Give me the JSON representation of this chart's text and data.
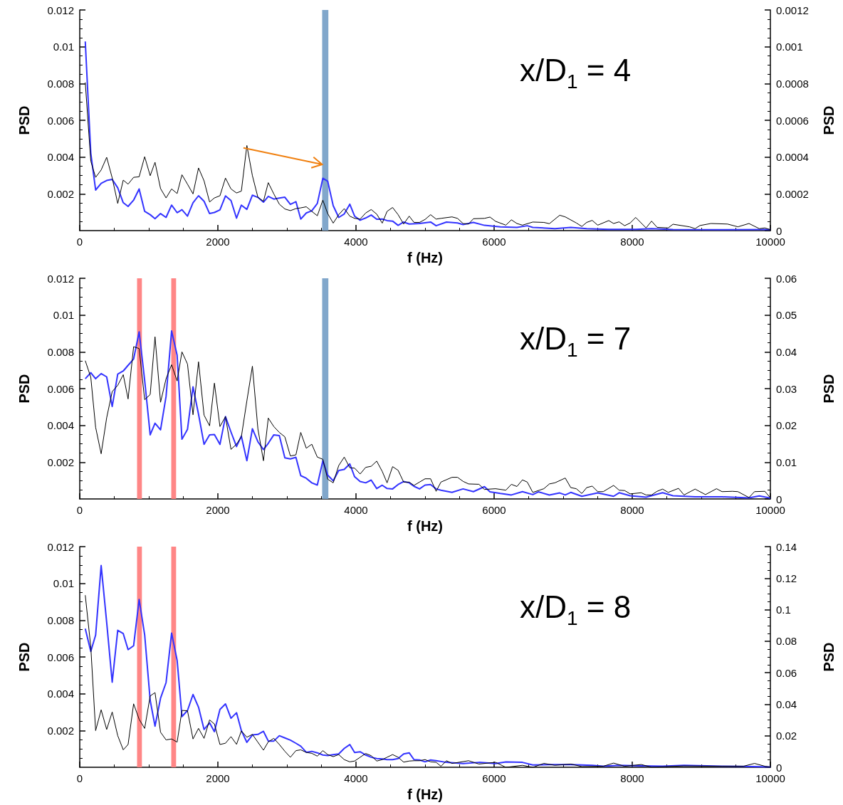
{
  "chart_data": [
    {
      "type": "line",
      "xlabel": "f (Hz)",
      "ylabel": "PSD",
      "y2label": "PSD",
      "annotations": [
        "x/D$_{1}$ = 4"
      ],
      "xlim": [
        0,
        10000
      ],
      "xticks": [
        0,
        2000,
        4000,
        6000,
        8000,
        10000
      ],
      "ylim": [
        0,
        0.012
      ],
      "yticks": [
        0.002,
        0.004,
        0.006,
        0.008,
        0.01,
        0.012
      ],
      "y2lim": [
        0,
        0.0012
      ],
      "y2ticks": [
        0,
        0.0002,
        0.0004,
        0.0006,
        0.0008,
        0.001,
        0.0012
      ],
      "bands": [
        {
          "axis": "x",
          "from": 3510,
          "to": 3600,
          "color": "#7aa2c8"
        }
      ],
      "series": [
        {
          "color": "#3333ff",
          "x": [
            80,
            160,
            230,
            310,
            390,
            470,
            550,
            630,
            700,
            780,
            860,
            940,
            1020,
            1090,
            1170,
            1250,
            1330,
            1410,
            1480,
            1560,
            1640,
            1720,
            1800,
            1880,
            1950,
            2030,
            2110,
            2190,
            2270,
            2340,
            2420,
            2500,
            2580,
            2660,
            2730,
            2810,
            2890,
            2970,
            3050,
            3130,
            3200,
            3280,
            3360,
            3440,
            3520,
            3590,
            3670,
            3750,
            3830,
            3910,
            3980,
            4060,
            4140,
            4220,
            4300,
            4380,
            4450,
            4530,
            4610,
            4690,
            4770,
            4920,
            5080,
            5160,
            5310,
            5470,
            5550,
            5700,
            5860,
            6090,
            6330,
            6480,
            6560,
            6880,
            7110,
            7340,
            7660,
            8050,
            8280,
            8590,
            9300,
            10000
          ],
          "values": [
            0.01029,
            0.00421,
            0.00221,
            0.00257,
            0.00273,
            0.00279,
            0.00233,
            0.00152,
            0.00132,
            0.00166,
            0.00227,
            0.00105,
            0.00087,
            0.00065,
            0.00093,
            0.00072,
            0.00139,
            0.00098,
            0.00114,
            0.00079,
            0.00152,
            0.0019,
            0.0016,
            0.00093,
            0.00099,
            0.00113,
            0.00189,
            0.00164,
            0.00068,
            0.00139,
            0.00116,
            0.00193,
            0.00181,
            0.00155,
            0.00187,
            0.00172,
            0.00177,
            0.00182,
            0.00143,
            0.00158,
            0.00063,
            0.00096,
            0.00108,
            0.00148,
            0.00285,
            0.00269,
            0.00136,
            0.00072,
            0.00091,
            0.00144,
            0.00079,
            0.00057,
            0.00069,
            0.00085,
            0.00062,
            0.00063,
            0.00055,
            0.00052,
            0.00029,
            0.00047,
            0.00036,
            0.00039,
            0.00047,
            0.00027,
            0.00047,
            0.00042,
            0.00033,
            0.00045,
            0.00029,
            0.00021,
            0.00018,
            0.00027,
            0.00018,
            0.00011,
            0.00018,
            0.00011,
            7e-05,
            7e-05,
            0.00011,
            6e-05,
            5e-05,
            6e-05
          ]
        },
        {
          "color": "#000000",
          "axis": "y2",
          "x": [
            80,
            160,
            230,
            310,
            390,
            470,
            550,
            630,
            700,
            780,
            860,
            940,
            1020,
            1090,
            1170,
            1250,
            1330,
            1410,
            1480,
            1560,
            1640,
            1720,
            1800,
            1880,
            1950,
            2030,
            2110,
            2190,
            2270,
            2340,
            2420,
            2500,
            2580,
            2660,
            2730,
            2810,
            2890,
            2970,
            3050,
            3130,
            3200,
            3280,
            3360,
            3440,
            3520,
            3590,
            3670,
            3750,
            3830,
            3910,
            3980,
            4060,
            4140,
            4220,
            4300,
            4380,
            4450,
            4530,
            4610,
            4690,
            4770,
            4840,
            4920,
            5000,
            5080,
            5160,
            5230,
            5390,
            5470,
            5550,
            5630,
            5700,
            5860,
            5940,
            6020,
            6170,
            6250,
            6330,
            6410,
            6560,
            6720,
            6800,
            6950,
            7030,
            7190,
            7270,
            7340,
            7420,
            7500,
            7660,
            7730,
            7810,
            7890,
            7970,
            8050,
            8200,
            8280,
            8360,
            8520,
            8590,
            8830,
            8910,
            8980,
            9140,
            9380,
            9530,
            9690,
            9840,
            9920,
            10000
          ],
          "values": [
            0.000806,
            0.000378,
            0.00029,
            0.00033,
            0.000399,
            0.000287,
            0.000148,
            0.000275,
            0.000253,
            0.00029,
            0.000293,
            0.000402,
            0.000299,
            0.000372,
            0.000229,
            0.000178,
            0.000227,
            0.000202,
            0.000304,
            0.000253,
            0.0002,
            0.000341,
            0.000271,
            0.000156,
            0.000178,
            0.00019,
            0.000286,
            0.000227,
            0.000205,
            0.000215,
            0.000463,
            0.000299,
            0.000181,
            0.00016,
            0.000261,
            0.0002,
            0.000144,
            0.000118,
            0.000109,
            0.00012,
            0.000124,
            0.00013,
            0.000105,
            8.1e-05,
            0.000166,
            9.3e-05,
            4.1e-05,
            8.7e-05,
            0.00012,
            7.9e-05,
            6.7e-05,
            6.3e-05,
            9.6e-05,
            0.000115,
            9e-05,
            4.1e-05,
            0.000105,
            0.000126,
            8.7e-05,
            3.6e-05,
            7.9e-05,
            4.5e-05,
            4.5e-05,
            6.1e-05,
            8.7e-05,
            6.3e-05,
            6.7e-05,
            7.5e-05,
            6.7e-05,
            3.9e-05,
            3.6e-05,
            6.5e-05,
            6.7e-05,
            7.4e-05,
            5.1e-05,
            3e-05,
            5.9e-05,
            3.9e-05,
            3e-05,
            4.7e-05,
            4.5e-05,
            3.8e-05,
            8.4e-05,
            7.5e-05,
            4.2e-05,
            2.3e-05,
            4.5e-05,
            5.6e-05,
            3e-05,
            5.5e-05,
            3.9e-05,
            4.8e-05,
            2.7e-05,
            4.2e-05,
            7.2e-05,
            1.5e-05,
            5.2e-05,
            1.8e-05,
            1.5e-05,
            3.5e-05,
            2.1e-05,
            1.1e-05,
            2.8e-05,
            3.9e-05,
            3.6e-05,
            2.1e-05,
            3.9e-05,
            1.1e-05,
            1.5e-05,
            5e-06
          ]
        }
      ]
    },
    {
      "type": "line",
      "xlabel": "f (Hz)",
      "ylabel": "PSD",
      "y2label": "PSD",
      "annotations": [
        "x/D$_{1}$ = 7"
      ],
      "xlim": [
        0,
        10000
      ],
      "xticks": [
        0,
        2000,
        4000,
        6000,
        8000,
        10000
      ],
      "ylim": [
        0,
        0.012
      ],
      "yticks": [
        0.002,
        0.004,
        0.006,
        0.008,
        0.01,
        0.012
      ],
      "y2lim": [
        0,
        0.06
      ],
      "y2ticks": [
        0,
        0.01,
        0.02,
        0.03,
        0.04,
        0.05,
        0.06
      ],
      "bands": [
        {
          "axis": "x",
          "from": 830,
          "to": 900,
          "color": "#ff7f7f"
        },
        {
          "axis": "x",
          "from": 1325,
          "to": 1395,
          "color": "#ff7f7f"
        },
        {
          "axis": "x",
          "from": 3510,
          "to": 3600,
          "color": "#7aa2c8"
        }
      ],
      "series": [
        {
          "color": "#3333ff",
          "x": [
            80,
            160,
            230,
            310,
            390,
            470,
            550,
            630,
            700,
            780,
            860,
            940,
            1020,
            1090,
            1170,
            1250,
            1330,
            1410,
            1480,
            1560,
            1640,
            1720,
            1800,
            1880,
            1950,
            2030,
            2110,
            2190,
            2270,
            2340,
            2420,
            2500,
            2580,
            2660,
            2730,
            2810,
            2890,
            2970,
            3050,
            3130,
            3200,
            3280,
            3360,
            3440,
            3520,
            3590,
            3670,
            3750,
            3830,
            3910,
            3980,
            4060,
            4140,
            4220,
            4300,
            4380,
            4450,
            4530,
            4610,
            4690,
            4770,
            4840,
            4920,
            5000,
            5080,
            5160,
            5230,
            5390,
            5550,
            5700,
            5860,
            5940,
            6090,
            6250,
            6410,
            6560,
            6640,
            6800,
            6950,
            7030,
            7110,
            7270,
            7500,
            7730,
            7810,
            7970,
            8200,
            8440,
            8590,
            8910,
            9300,
            9690,
            9840,
            10000
          ],
          "values": [
            0.00654,
            0.00687,
            0.00654,
            0.00682,
            0.00664,
            0.00503,
            0.00679,
            0.00696,
            0.00727,
            0.00761,
            0.00909,
            0.00645,
            0.00349,
            0.00412,
            0.00376,
            0.00558,
            0.00914,
            0.00782,
            0.00325,
            0.00379,
            0.0061,
            0.00461,
            0.00297,
            0.00349,
            0.00351,
            0.00297,
            0.00448,
            0.00364,
            0.00285,
            0.00342,
            0.00208,
            0.00382,
            0.00311,
            0.00269,
            0.00303,
            0.00349,
            0.00345,
            0.00224,
            0.00218,
            0.00227,
            0.00127,
            0.00113,
            0.00088,
            0.00076,
            0.00208,
            0.0013,
            0.00099,
            0.00155,
            0.00161,
            0.00191,
            0.00121,
            0.00095,
            0.00088,
            0.00103,
            0.00057,
            0.00075,
            0.00057,
            0.00055,
            0.00079,
            0.00095,
            0.00088,
            0.00069,
            0.00055,
            0.00076,
            0.00079,
            0.00055,
            0.00048,
            0.00036,
            0.00055,
            0.0004,
            0.00067,
            0.00039,
            0.0003,
            0.00022,
            0.0004,
            0.00024,
            0.00039,
            0.00022,
            0.00033,
            0.00022,
            0.00036,
            0.00015,
            0.00033,
            0.00015,
            0.00034,
            0.00018,
            0.0001,
            0.00034,
            0.00018,
            0.00012,
            0.00012,
            6e-05,
            0.00017,
            5e-05
          ]
        },
        {
          "color": "#000000",
          "axis": "y2",
          "x": [
            80,
            160,
            230,
            310,
            390,
            470,
            550,
            630,
            700,
            780,
            860,
            940,
            1020,
            1090,
            1170,
            1250,
            1330,
            1410,
            1480,
            1560,
            1640,
            1720,
            1800,
            1880,
            1950,
            2030,
            2110,
            2190,
            2270,
            2340,
            2420,
            2500,
            2580,
            2660,
            2730,
            2810,
            2890,
            2970,
            3050,
            3130,
            3200,
            3280,
            3360,
            3440,
            3520,
            3590,
            3670,
            3750,
            3830,
            3910,
            3980,
            4060,
            4140,
            4220,
            4300,
            4380,
            4450,
            4530,
            4610,
            4690,
            4770,
            4840,
            4920,
            5000,
            5080,
            5160,
            5230,
            5390,
            5470,
            5550,
            5630,
            5780,
            5860,
            6020,
            6170,
            6250,
            6330,
            6410,
            6480,
            6560,
            6720,
            6800,
            6880,
            7030,
            7110,
            7190,
            7270,
            7340,
            7420,
            7500,
            7580,
            7730,
            7810,
            7890,
            7970,
            8130,
            8200,
            8280,
            8360,
            8440,
            8520,
            8670,
            8750,
            8910,
            9060,
            9220,
            9300,
            9450,
            9530,
            9690,
            9770,
            9920,
            10000
          ],
          "values": [
            0.0376,
            0.0331,
            0.0195,
            0.0123,
            0.0221,
            0.0292,
            0.0309,
            0.0338,
            0.0272,
            0.0414,
            0.0409,
            0.027,
            0.0284,
            0.0441,
            0.0263,
            0.0327,
            0.0365,
            0.0321,
            0.04,
            0.0367,
            0.0229,
            0.0373,
            0.0228,
            0.0199,
            0.0315,
            0.0197,
            0.0224,
            0.0135,
            0.0149,
            0.0169,
            0.0267,
            0.0361,
            0.019,
            0.0104,
            0.022,
            0.0197,
            0.0181,
            0.0169,
            0.0117,
            0.012,
            0.0181,
            0.0138,
            0.0149,
            0.0114,
            0.0108,
            0.0054,
            0.0044,
            0.0091,
            0.0114,
            0.0085,
            0.0084,
            0.0068,
            0.0086,
            0.0089,
            0.0103,
            0.0075,
            0.0044,
            0.0088,
            0.0078,
            0.0046,
            0.0046,
            0.0037,
            0.0046,
            0.0055,
            0.0055,
            0.0021,
            0.0046,
            0.0059,
            0.0059,
            0.0048,
            0.0041,
            0.004,
            0.0026,
            0.0028,
            0.0024,
            0.004,
            0.0034,
            0.0052,
            0.0046,
            0.0018,
            0.0028,
            0.0041,
            0.0044,
            0.0057,
            0.0031,
            0.0028,
            0.0015,
            0.0031,
            0.0035,
            0.002,
            0.002,
            0.0037,
            0.0024,
            0.0023,
            0.0014,
            0.0017,
            0.0011,
            0.0011,
            0.0021,
            0.0027,
            0.0018,
            0.0029,
            0.0011,
            0.0027,
            0.0012,
            0.0028,
            0.002,
            0.0021,
            0.002,
            0.0004,
            0.002,
            0.0021,
            0.0003
          ]
        }
      ]
    },
    {
      "type": "line",
      "xlabel": "f (Hz)",
      "ylabel": "PSD",
      "y2label": "PSD",
      "annotations": [
        "x/D$_{1}$ = 8"
      ],
      "xlim": [
        0,
        10000
      ],
      "xticks": [
        0,
        2000,
        4000,
        6000,
        8000,
        10000
      ],
      "ylim": [
        0,
        0.012
      ],
      "yticks": [
        0.002,
        0.004,
        0.006,
        0.008,
        0.01,
        0.012
      ],
      "y2lim": [
        0,
        0.14
      ],
      "y2ticks": [
        0,
        0.02,
        0.04,
        0.06,
        0.08,
        0.1,
        0.12,
        0.14
      ],
      "bands": [
        {
          "axis": "x",
          "from": 830,
          "to": 900,
          "color": "#ff7f7f"
        },
        {
          "axis": "x",
          "from": 1325,
          "to": 1395,
          "color": "#ff7f7f"
        }
      ],
      "series": [
        {
          "color": "#3333ff",
          "x": [
            80,
            160,
            230,
            310,
            390,
            470,
            550,
            630,
            700,
            780,
            860,
            940,
            1020,
            1090,
            1170,
            1250,
            1330,
            1410,
            1480,
            1560,
            1640,
            1720,
            1800,
            1880,
            1950,
            2030,
            2110,
            2190,
            2270,
            2340,
            2420,
            2500,
            2580,
            2660,
            2730,
            2810,
            2890,
            2970,
            3050,
            3130,
            3200,
            3280,
            3360,
            3440,
            3520,
            3590,
            3670,
            3750,
            3830,
            3910,
            3980,
            4060,
            4140,
            4220,
            4300,
            4380,
            4450,
            4530,
            4610,
            4690,
            4770,
            4840,
            4920,
            5000,
            5080,
            5160,
            5310,
            5550,
            5780,
            6020,
            6170,
            6410,
            6560,
            6800,
            7110,
            7420,
            7580,
            7810,
            8130,
            8440,
            8750,
            9300,
            9610,
            10000
          ],
          "values": [
            0.00754,
            0.0063,
            0.00719,
            0.01097,
            0.00788,
            0.00463,
            0.00745,
            0.00727,
            0.0064,
            0.00661,
            0.00913,
            0.00721,
            0.00364,
            0.00224,
            0.00376,
            0.00461,
            0.0073,
            0.00582,
            0.00276,
            0.00309,
            0.00396,
            0.00327,
            0.00206,
            0.00242,
            0.00194,
            0.00315,
            0.00345,
            0.00267,
            0.00297,
            0.002,
            0.00136,
            0.00176,
            0.00179,
            0.00196,
            0.00143,
            0.00143,
            0.00172,
            0.0016,
            0.00148,
            0.00131,
            0.00115,
            0.00082,
            0.00087,
            0.00079,
            0.00067,
            0.00064,
            0.00069,
            0.00073,
            0.00103,
            0.00124,
            0.00081,
            0.00085,
            0.00067,
            0.00055,
            0.00048,
            0.00046,
            0.00042,
            0.00042,
            0.00048,
            0.00073,
            0.00079,
            0.00042,
            0.0004,
            0.0003,
            0.0004,
            0.00036,
            0.00027,
            0.00021,
            0.00027,
            0.00021,
            0.00029,
            0.00027,
            0.00013,
            0.00015,
            0.00015,
            0.00011,
            6e-05,
            0.00011,
            8e-05,
            6e-05,
            0.00011,
            6e-05,
            5e-05,
            2e-05
          ]
        },
        {
          "color": "#000000",
          "axis": "y2",
          "x": [
            80,
            160,
            230,
            310,
            390,
            470,
            550,
            630,
            700,
            780,
            860,
            940,
            1020,
            1090,
            1170,
            1250,
            1330,
            1410,
            1480,
            1560,
            1640,
            1720,
            1800,
            1880,
            1950,
            2030,
            2110,
            2190,
            2270,
            2340,
            2420,
            2500,
            2580,
            2660,
            2730,
            2810,
            2890,
            2970,
            3050,
            3130,
            3200,
            3280,
            3360,
            3440,
            3520,
            3590,
            3670,
            3750,
            3830,
            3910,
            3980,
            4060,
            4140,
            4220,
            4300,
            4380,
            4450,
            4530,
            4610,
            4690,
            4770,
            4840,
            4920,
            5000,
            5080,
            5160,
            5230,
            5310,
            5390,
            5630,
            5780,
            6020,
            6170,
            6410,
            6560,
            6720,
            6880,
            7110,
            7270,
            7580,
            7730,
            7890,
            8130,
            8280,
            8750,
            9300,
            9610,
            9770,
            9920,
            10000
          ],
          "values": [
            0.1092,
            0.0763,
            0.0233,
            0.0365,
            0.024,
            0.0351,
            0.0201,
            0.0111,
            0.0145,
            0.0403,
            0.0305,
            0.0247,
            0.0453,
            0.0474,
            0.0223,
            0.0174,
            0.018,
            0.016,
            0.0361,
            0.0359,
            0.018,
            0.0247,
            0.0184,
            0.0301,
            0.0275,
            0.0145,
            0.0153,
            0.0195,
            0.0146,
            0.0231,
            0.0191,
            0.0209,
            0.0159,
            0.0109,
            0.0162,
            0.0184,
            0.0145,
            0.0102,
            0.0064,
            0.0106,
            0.0111,
            0.0095,
            0.0089,
            0.0071,
            0.0106,
            0.0081,
            0.0068,
            0.0081,
            0.0049,
            0.0035,
            0.004,
            0.0064,
            0.0088,
            0.0074,
            0.004,
            0.0049,
            0.0064,
            0.0081,
            0.0064,
            0.0033,
            0.004,
            0.0042,
            0.0042,
            0.0049,
            0.0035,
            0.0032,
            0.0007,
            0.0042,
            0.0025,
            0.0042,
            0.0021,
            0.0032,
            0,
            0.0013,
            0,
            0.0025,
            0.0013,
            0.0021,
            0.0005,
            0.0007,
            0.0027,
            0.0007,
            0.0018,
            0.0001,
            0.0009,
            0.0007,
            0.0007,
            0.0025,
            0.0007,
            0.0001
          ]
        }
      ]
    }
  ]
}
